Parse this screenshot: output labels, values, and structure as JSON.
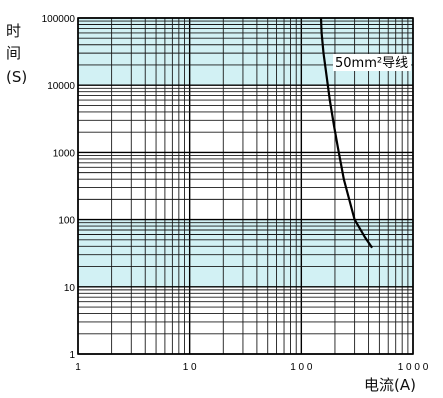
{
  "chart_data": {
    "type": "line",
    "x_scale": "log",
    "y_scale": "log",
    "xlim": [
      1,
      1000
    ],
    "ylim": [
      1,
      100000
    ],
    "x_tick_labels": [
      "1",
      "1 0",
      "1 0 0",
      "1 0 0 0"
    ],
    "y_tick_labels": [
      "1",
      "10",
      "100",
      "1000",
      "10000",
      "100000"
    ],
    "ylabel_lines": [
      "时",
      "间",
      "(S)"
    ],
    "xlabel": "电流(A)",
    "grid": true,
    "shaded_bands_y": [
      [
        10000,
        100000
      ],
      [
        10,
        100
      ]
    ],
    "series": [
      {
        "name": "50mm²导线",
        "x": [
          150,
          152,
          158,
          168,
          180,
          196,
          212,
          240,
          300,
          370,
          430
        ],
        "y": [
          100000,
          60000,
          30000,
          14000,
          6000,
          2500,
          1200,
          400,
          100,
          55,
          38
        ]
      }
    ]
  },
  "colors": {
    "band": "#d2f1f4",
    "grid_major": "#000000",
    "grid_minor": "#1a1a1a",
    "curve": "#000000",
    "background": "#ffffff"
  }
}
